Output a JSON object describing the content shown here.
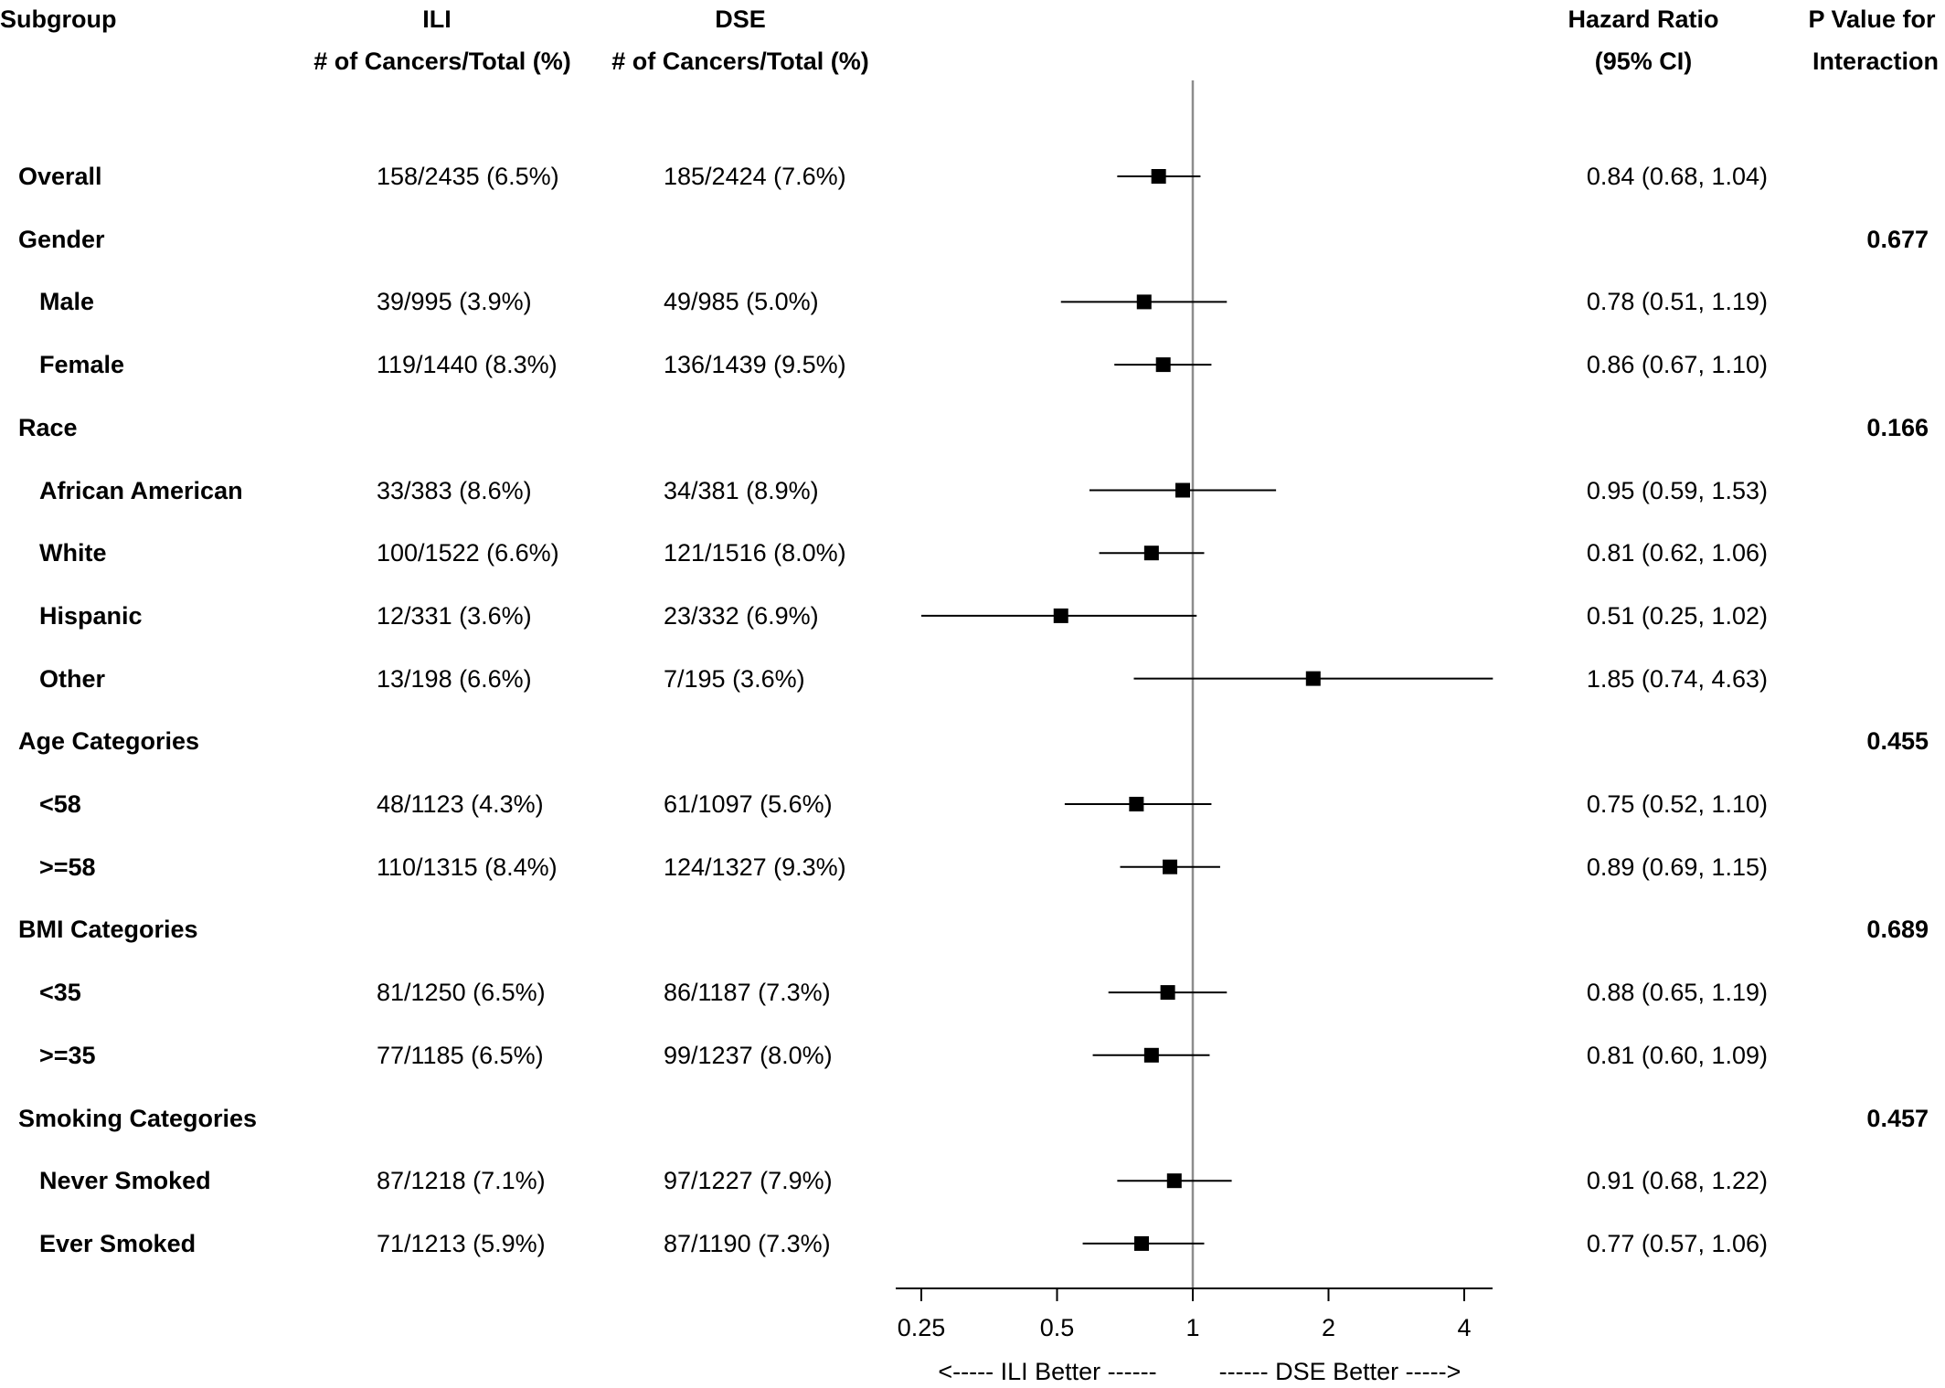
{
  "headers": {
    "subgroup": "Subgroup",
    "ili_line1": "ILI",
    "ili_line2": "# of Cancers/Total (%)",
    "dse_line1": "DSE",
    "dse_line2": "# of Cancers/Total (%)",
    "hr_line1": "Hazard Ratio",
    "hr_line2": "(95% CI)",
    "p_line1": "P Value for",
    "p_line2": "Interaction"
  },
  "chart_data": {
    "type": "forest",
    "x_scale": "log2",
    "xlim": [
      0.2,
      5.0
    ],
    "reference_line": 1,
    "ticks": [
      "0.25",
      "0.5",
      "1",
      "2",
      "4"
    ],
    "tick_values": [
      0.25,
      0.5,
      1,
      2,
      4
    ],
    "left_direction_label": "<----- ILI Better ------",
    "right_direction_label": "------ DSE Better ----->",
    "rows": [
      {
        "label": "Overall",
        "level": 0,
        "ili": "158/2435 (6.5%)",
        "dse": "185/2424 (7.6%)",
        "hr": 0.84,
        "lo": 0.68,
        "hi": 1.04,
        "hr_text": "0.84 (0.68, 1.04)",
        "p": ""
      },
      {
        "label": "Gender",
        "level": 0,
        "ili": "",
        "dse": "",
        "hr_text": "",
        "p": "0.677"
      },
      {
        "label": "Male",
        "level": 1,
        "ili": "39/995 (3.9%)",
        "dse": "49/985 (5.0%)",
        "hr": 0.78,
        "lo": 0.51,
        "hi": 1.19,
        "hr_text": "0.78 (0.51, 1.19)",
        "p": ""
      },
      {
        "label": "Female",
        "level": 1,
        "ili": "119/1440 (8.3%)",
        "dse": "136/1439 (9.5%)",
        "hr": 0.86,
        "lo": 0.67,
        "hi": 1.1,
        "hr_text": "0.86 (0.67, 1.10)",
        "p": ""
      },
      {
        "label": "Race",
        "level": 0,
        "ili": "",
        "dse": "",
        "hr_text": "",
        "p": "0.166"
      },
      {
        "label": "African American",
        "level": 1,
        "ili": "33/383 (8.6%)",
        "dse": "34/381 (8.9%)",
        "hr": 0.95,
        "lo": 0.59,
        "hi": 1.53,
        "hr_text": "0.95 (0.59, 1.53)",
        "p": ""
      },
      {
        "label": "White",
        "level": 1,
        "ili": "100/1522 (6.6%)",
        "dse": "121/1516 (8.0%)",
        "hr": 0.81,
        "lo": 0.62,
        "hi": 1.06,
        "hr_text": "0.81 (0.62, 1.06)",
        "p": ""
      },
      {
        "label": "Hispanic",
        "level": 1,
        "ili": "12/331 (3.6%)",
        "dse": "23/332 (6.9%)",
        "hr": 0.51,
        "lo": 0.25,
        "hi": 1.02,
        "hr_text": "0.51 (0.25, 1.02)",
        "p": ""
      },
      {
        "label": "Other",
        "level": 1,
        "ili": "13/198 (6.6%)",
        "dse": "7/195 (3.6%)",
        "hr": 1.85,
        "lo": 0.74,
        "hi": 4.63,
        "hr_text": "1.85 (0.74, 4.63)",
        "p": ""
      },
      {
        "label": "Age Categories",
        "level": 0,
        "ili": "",
        "dse": "",
        "hr_text": "",
        "p": "0.455"
      },
      {
        "label": "<58",
        "level": 1,
        "ili": "48/1123 (4.3%)",
        "dse": "61/1097 (5.6%)",
        "hr": 0.75,
        "lo": 0.52,
        "hi": 1.1,
        "hr_text": "0.75 (0.52, 1.10)",
        "p": ""
      },
      {
        "label": ">=58",
        "level": 1,
        "ili": "110/1315 (8.4%)",
        "dse": "124/1327 (9.3%)",
        "hr": 0.89,
        "lo": 0.69,
        "hi": 1.15,
        "hr_text": "0.89 (0.69, 1.15)",
        "p": ""
      },
      {
        "label": "BMI Categories",
        "level": 0,
        "ili": "",
        "dse": "",
        "hr_text": "",
        "p": "0.689"
      },
      {
        "label": "<35",
        "level": 1,
        "ili": "81/1250 (6.5%)",
        "dse": "86/1187 (7.3%)",
        "hr": 0.88,
        "lo": 0.65,
        "hi": 1.19,
        "hr_text": "0.88 (0.65, 1.19)",
        "p": ""
      },
      {
        "label": ">=35",
        "level": 1,
        "ili": "77/1185 (6.5%)",
        "dse": "99/1237 (8.0%)",
        "hr": 0.81,
        "lo": 0.6,
        "hi": 1.09,
        "hr_text": "0.81 (0.60, 1.09)",
        "p": ""
      },
      {
        "label": "Smoking Categories",
        "level": 0,
        "ili": "",
        "dse": "",
        "hr_text": "",
        "p": "0.457"
      },
      {
        "label": "Never Smoked",
        "level": 1,
        "ili": "87/1218 (7.1%)",
        "dse": "97/1227 (7.9%)",
        "hr": 0.91,
        "lo": 0.68,
        "hi": 1.22,
        "hr_text": "0.91 (0.68, 1.22)",
        "p": ""
      },
      {
        "label": "Ever Smoked",
        "level": 1,
        "ili": "71/1213 (5.9%)",
        "dse": "87/1190 (7.3%)",
        "hr": 0.77,
        "lo": 0.57,
        "hi": 1.06,
        "hr_text": "0.77 (0.57, 1.06)",
        "p": ""
      }
    ]
  }
}
